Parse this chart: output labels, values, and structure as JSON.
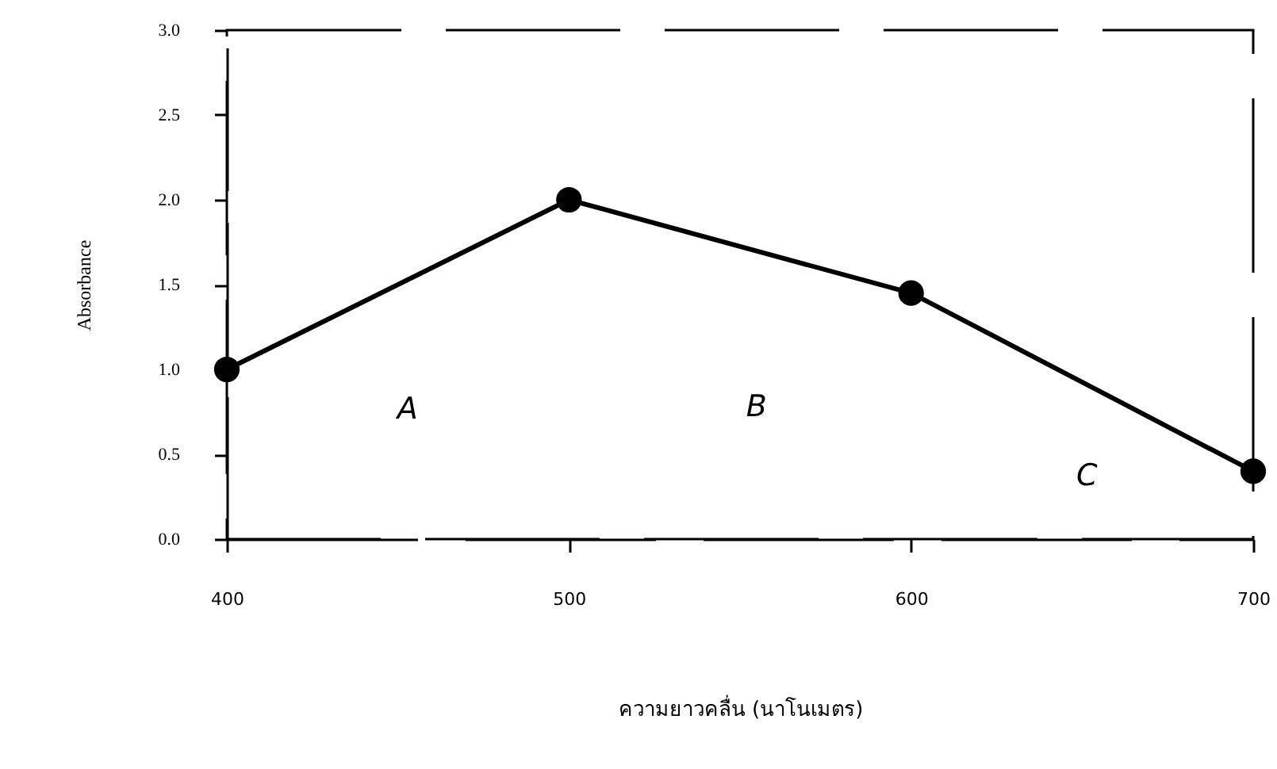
{
  "chart_data": {
    "type": "line",
    "xlabel": "ความยาวคลื่น (นาโนเมตร)",
    "ylabel": "Absorbance",
    "x": [
      400,
      500,
      600,
      700
    ],
    "series": [
      {
        "color": "#000000",
        "values": [
          1.0,
          2.0,
          1.45,
          0.4
        ]
      }
    ],
    "xlim": [
      400,
      700
    ],
    "xticks": [
      400,
      500,
      600,
      700
    ],
    "ylim": [
      0,
      3
    ],
    "yticks": [
      {
        "value": 0,
        "label": "0.0"
      },
      0.5,
      {
        "value": 1,
        "label": "1.0"
      },
      1.5,
      {
        "value": 2,
        "label": "2.0"
      },
      2.5,
      {
        "value": 3,
        "label": "3.0"
      }
    ],
    "marker": "circle",
    "line_style": "solid",
    "grid": false,
    "annotations": [
      "A",
      "B",
      "C"
    ]
  }
}
